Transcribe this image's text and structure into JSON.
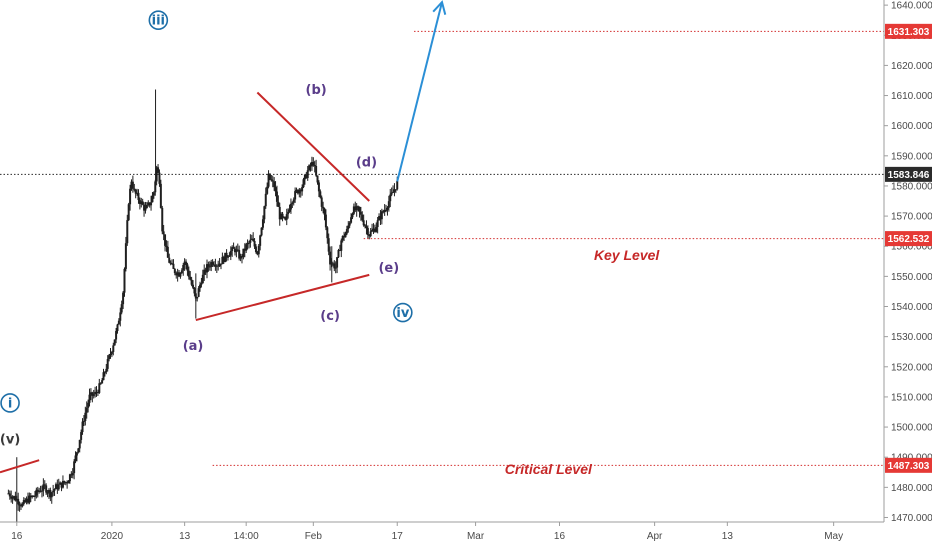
{
  "chart_data": {
    "type": "candlestick",
    "instrument": "",
    "colors": {
      "candle": "#1f1f1f",
      "trendline": "#c62828",
      "projection": "#2b8fd6",
      "level_line": "#d32f2f",
      "level_badge": "#e53935",
      "current_badge": "#2b2b2b",
      "wave_primary": "#1e6fa8",
      "wave_minor": "#5a3d8a",
      "wave_v": "#3a3a3a",
      "level_text": "#c62828"
    },
    "x_axis": {
      "ticks": [
        {
          "label": "16",
          "x": 0
        },
        {
          "label": "2020",
          "x": 17
        },
        {
          "label": "13",
          "x": 30
        },
        {
          "label": "14:00",
          "x": 41
        },
        {
          "label": "Feb",
          "x": 53
        },
        {
          "label": "17",
          "x": 68
        },
        {
          "label": "Mar",
          "x": 82
        },
        {
          "label": "16",
          "x": 97
        },
        {
          "label": "Apr",
          "x": 114
        },
        {
          "label": "13",
          "x": 127
        },
        {
          "label": "May",
          "x": 146
        }
      ],
      "range": [
        -3,
        155
      ]
    },
    "y_axis": {
      "ticks": [
        1470,
        1480,
        1490,
        1500,
        1510,
        1520,
        1530,
        1540,
        1550,
        1560,
        1570,
        1580,
        1590,
        1600,
        1610,
        1620,
        1630,
        1640
      ],
      "tick_labels": [
        "1470.000",
        "1480.000",
        "1490.000",
        "1500.000",
        "1510.000",
        "1520.000",
        "1530.000",
        "1540.000",
        "1550.000",
        "1560.000",
        "1570.000",
        "1580.000",
        "1590.000",
        "1600.000",
        "1610.000",
        "1620.000",
        "1630.000",
        "1640.000"
      ],
      "range": [
        1468.5,
        1641.7
      ]
    },
    "price_levels": [
      {
        "name": "resistance",
        "value": 1631.303,
        "badge": "1631.303",
        "x_start": 71,
        "style": "dotted",
        "color_key": "level_line",
        "badge_color_key": "level_badge"
      },
      {
        "name": "current",
        "value": 1583.846,
        "badge": "1583.846",
        "x_start": -3,
        "style": "dotted",
        "color_key": "current_badge",
        "badge_color_key": "current_badge"
      },
      {
        "name": "key-level",
        "value": 1562.532,
        "badge": "1562.532",
        "x_start": 62,
        "style": "dotted",
        "color_key": "level_line",
        "badge_color_key": "level_badge",
        "label": "Key Level",
        "label_x": 109,
        "label_y": 1555.5
      },
      {
        "name": "critical-level",
        "value": 1487.303,
        "badge": "1487.303",
        "x_start": 35,
        "style": "dotted",
        "color_key": "level_line",
        "badge_color_key": "level_badge",
        "label": "Critical Level",
        "label_x": 95,
        "label_y": 1484.5
      }
    ],
    "trendlines": [
      {
        "name": "triangle-upper",
        "x1": 43,
        "y1": 1611,
        "x2": 63,
        "y2": 1575,
        "color_key": "trendline"
      },
      {
        "name": "triangle-lower",
        "x1": 32,
        "y1": 1535.5,
        "x2": 63,
        "y2": 1550.5,
        "color_key": "trendline"
      },
      {
        "name": "prior-trend",
        "x1": -3,
        "y1": 1485,
        "x2": 4,
        "y2": 1489,
        "color_key": "trendline"
      }
    ],
    "projection": {
      "x1": 68,
      "y1": 1581.5,
      "x2": 76,
      "y2": 1641
    },
    "wave_labels": [
      {
        "name": "wave-i",
        "text": "i",
        "x": -1.2,
        "y": 1508,
        "circled": true,
        "color_key": "wave_primary"
      },
      {
        "name": "wave-v",
        "text": "(v)",
        "x": -1.2,
        "y": 1496,
        "circled": false,
        "color_key": "wave_v"
      },
      {
        "name": "wave-iii",
        "text": "iii",
        "x": 25.3,
        "y": 1635,
        "circled": true,
        "color_key": "wave_primary"
      },
      {
        "name": "wave-a",
        "text": "(a)",
        "x": 31.5,
        "y": 1527,
        "circled": false,
        "color_key": "wave_minor"
      },
      {
        "name": "wave-b",
        "text": "(b)",
        "x": 53.5,
        "y": 1612,
        "circled": false,
        "color_key": "wave_minor"
      },
      {
        "name": "wave-c",
        "text": "(c)",
        "x": 56,
        "y": 1537,
        "circled": false,
        "color_key": "wave_minor"
      },
      {
        "name": "wave-d",
        "text": "(d)",
        "x": 62.5,
        "y": 1588,
        "circled": false,
        "color_key": "wave_minor"
      },
      {
        "name": "wave-e",
        "text": "(e)",
        "x": 66.5,
        "y": 1553,
        "circled": false,
        "color_key": "wave_minor"
      },
      {
        "name": "wave-iv",
        "text": "iv",
        "x": 69,
        "y": 1538,
        "circled": true,
        "color_key": "wave_primary"
      }
    ],
    "path_points": [
      [
        -1.5,
        1478
      ],
      [
        0,
        1476
      ],
      [
        1,
        1474
      ],
      [
        2,
        1476
      ],
      [
        3,
        1477
      ],
      [
        4,
        1479
      ],
      [
        5,
        1480
      ],
      [
        6,
        1478
      ],
      [
        7,
        1480
      ],
      [
        8,
        1481
      ],
      [
        9,
        1482
      ],
      [
        10,
        1486
      ],
      [
        11,
        1494
      ],
      [
        12,
        1503
      ],
      [
        13,
        1510
      ],
      [
        14,
        1511
      ],
      [
        15,
        1514
      ],
      [
        16,
        1520
      ],
      [
        17,
        1526
      ],
      [
        18,
        1533
      ],
      [
        19,
        1545
      ],
      [
        19.5,
        1560
      ],
      [
        20,
        1575
      ],
      [
        20.5,
        1582
      ],
      [
        21,
        1578
      ],
      [
        22,
        1575
      ],
      [
        23,
        1572
      ],
      [
        24,
        1575
      ],
      [
        24.5,
        1578
      ],
      [
        25,
        1586
      ],
      [
        25.5,
        1582
      ],
      [
        26,
        1566
      ],
      [
        27,
        1556
      ],
      [
        28,
        1552
      ],
      [
        29,
        1551
      ],
      [
        30,
        1555
      ],
      [
        31,
        1549
      ],
      [
        32,
        1542
      ],
      [
        33,
        1549
      ],
      [
        34,
        1553
      ],
      [
        35,
        1555
      ],
      [
        36,
        1554
      ],
      [
        37,
        1556
      ],
      [
        38,
        1558
      ],
      [
        39,
        1559
      ],
      [
        40,
        1556
      ],
      [
        41,
        1560
      ],
      [
        42,
        1562
      ],
      [
        43,
        1558
      ],
      [
        44,
        1570
      ],
      [
        45,
        1583
      ],
      [
        46,
        1580
      ],
      [
        47,
        1570
      ],
      [
        48,
        1568
      ],
      [
        49,
        1575
      ],
      [
        50,
        1578
      ],
      [
        51,
        1580
      ],
      [
        52,
        1585
      ],
      [
        53,
        1588
      ],
      [
        54,
        1578
      ],
      [
        55,
        1570
      ],
      [
        56,
        1555
      ],
      [
        57,
        1553
      ],
      [
        58,
        1562
      ],
      [
        59,
        1565
      ],
      [
        60,
        1572
      ],
      [
        61,
        1572
      ],
      [
        62,
        1568
      ],
      [
        63,
        1564
      ],
      [
        64,
        1566
      ],
      [
        65,
        1570
      ],
      [
        66,
        1573
      ],
      [
        67,
        1577
      ],
      [
        68,
        1581
      ]
    ],
    "path_range": [
      -1.5,
      68
    ]
  }
}
